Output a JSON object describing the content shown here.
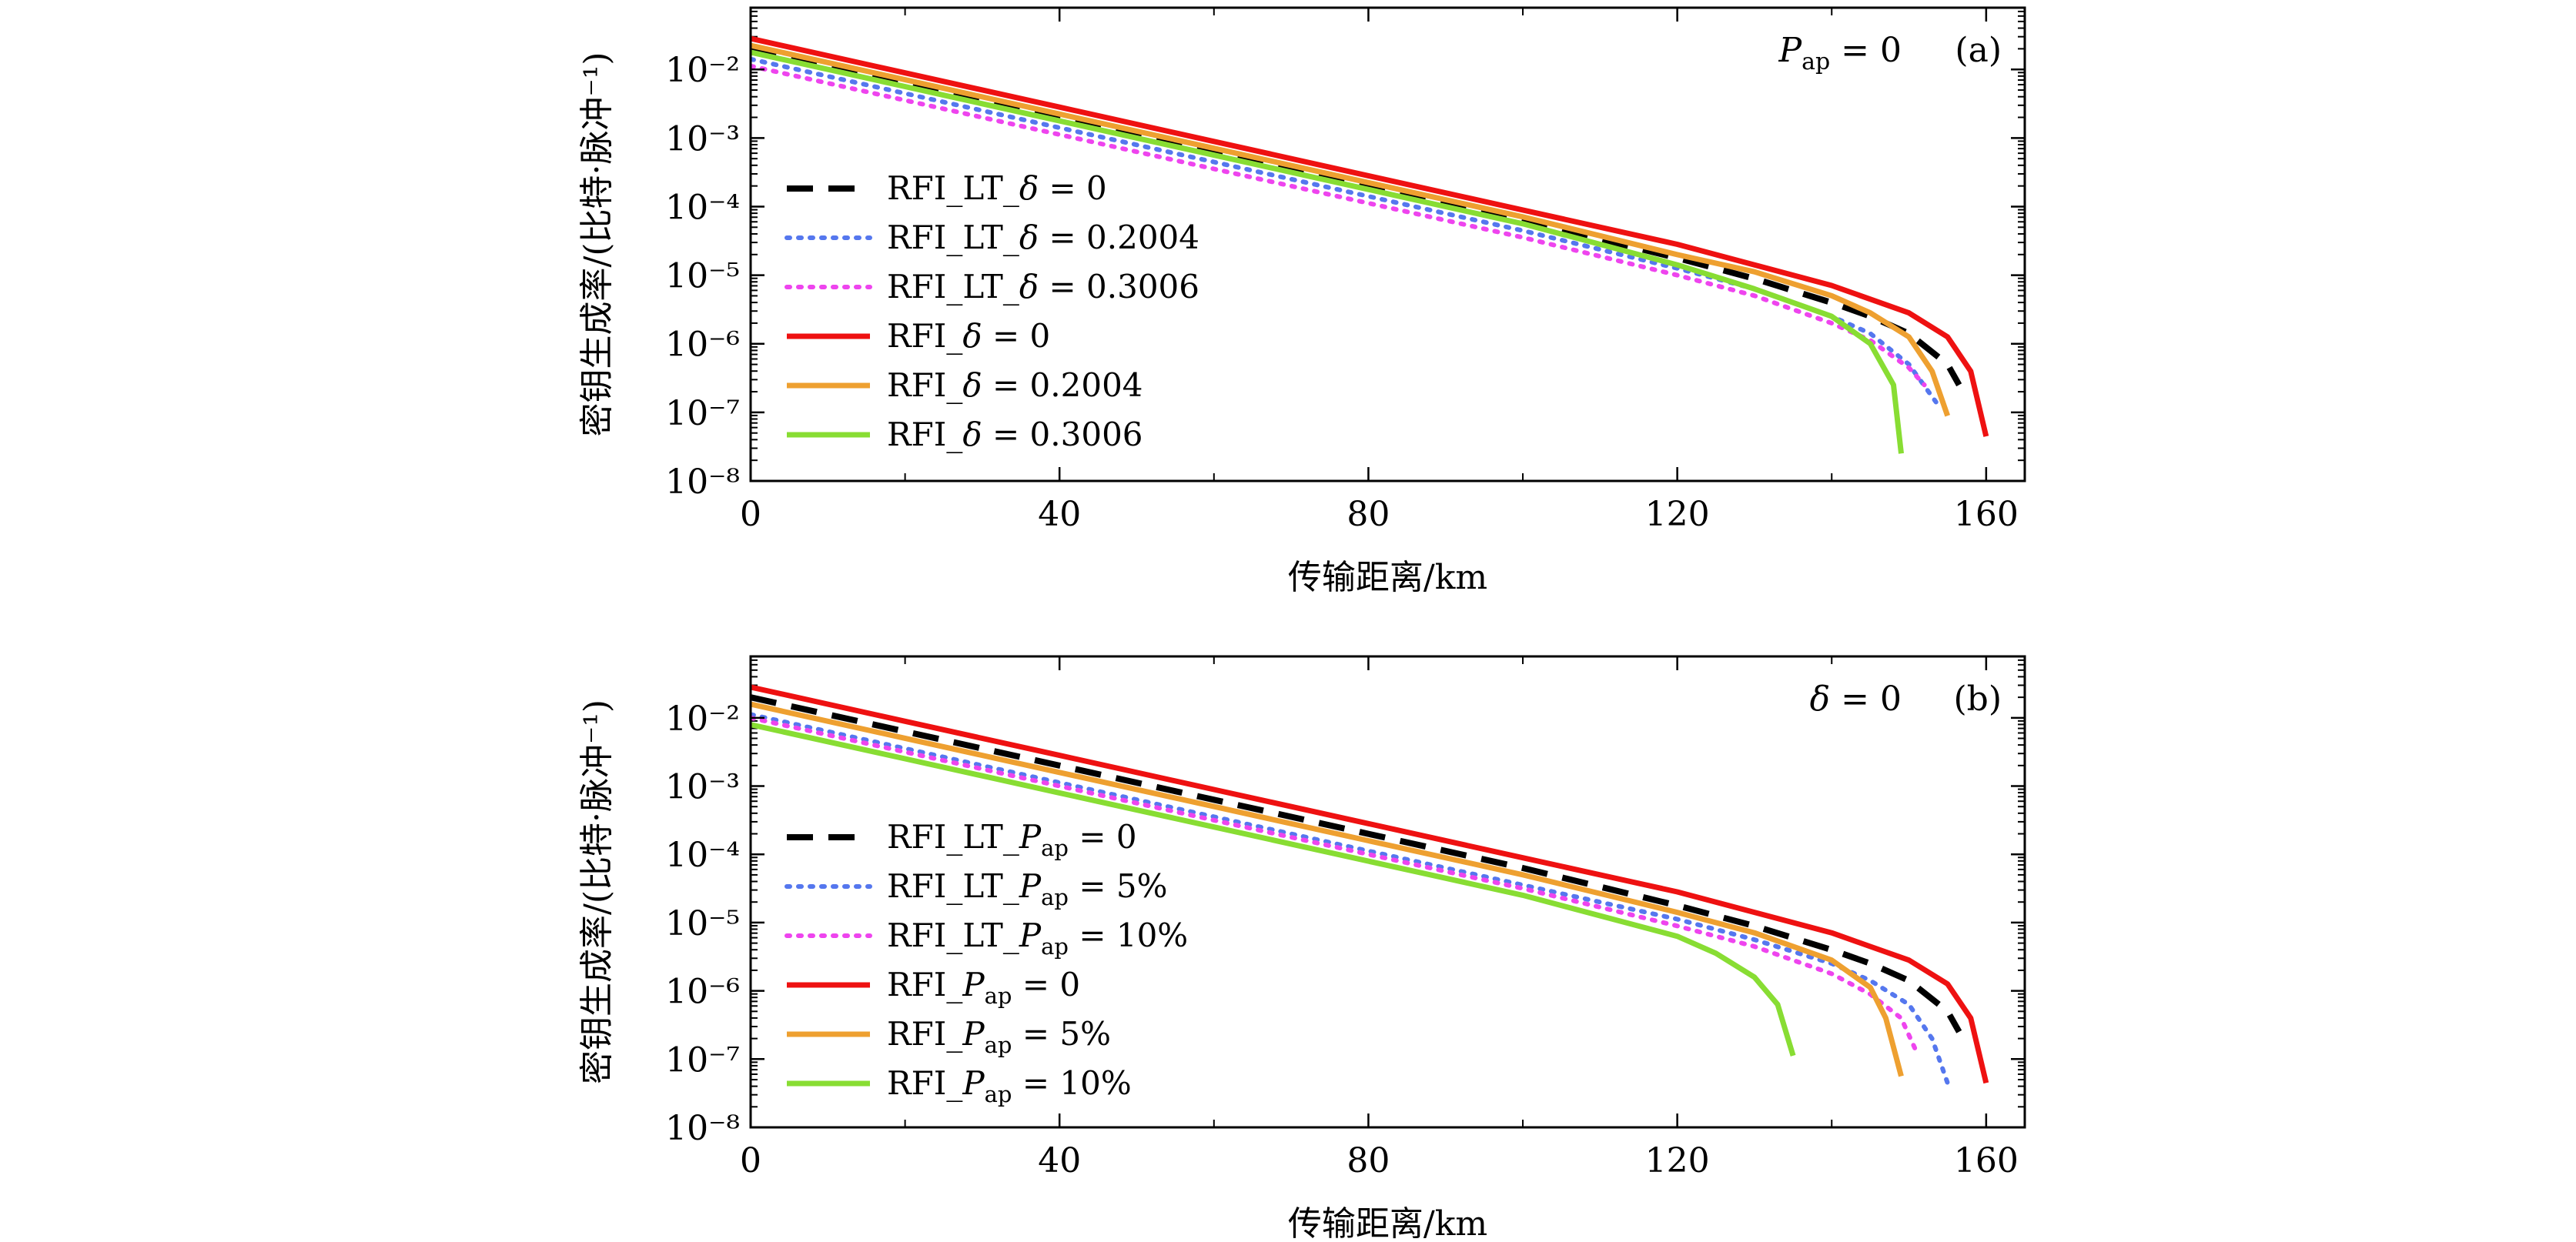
{
  "chart_data": [
    {
      "type": "line",
      "panel_tag": "(a)",
      "condition": {
        "symbol": "P",
        "sub": "ap",
        "rest": " = 0"
      },
      "xlabel": "传输距离/km",
      "ylabel": "密钥生成率/(比特·脉冲⁻¹)",
      "xlim": [
        0,
        165
      ],
      "xticks": [
        0,
        40,
        80,
        120,
        160
      ],
      "ylim_exp": [
        -8,
        -1.1
      ],
      "yticks": [
        {
          "exp": -8,
          "label": "10⁻⁸"
        },
        {
          "exp": -7,
          "label": "10⁻⁷"
        },
        {
          "exp": -6,
          "label": "10⁻⁶"
        },
        {
          "exp": -5,
          "label": "10⁻⁵"
        },
        {
          "exp": -4,
          "label": "10⁻⁴"
        },
        {
          "exp": -3,
          "label": "10⁻³"
        },
        {
          "exp": -2,
          "label": "10⁻²"
        }
      ],
      "series": [
        {
          "name": "RFI_LT_",
          "sym": "δ",
          "sub": "",
          "rest": " = 0",
          "color": "#000000",
          "style": "dashed",
          "x": [
            0,
            20,
            40,
            60,
            80,
            100,
            120,
            130,
            140,
            145,
            150,
            155,
            156.5
          ],
          "log10_y": [
            -1.7,
            -2.2,
            -2.7,
            -3.2,
            -3.7,
            -4.2,
            -4.75,
            -5.05,
            -5.4,
            -5.6,
            -5.85,
            -6.3,
            -6.6
          ]
        },
        {
          "name": "RFI_LT_",
          "sym": "δ",
          "sub": "",
          "rest": " = 0.2004",
          "color": "#5577ee",
          "style": "dotted",
          "x": [
            0,
            20,
            40,
            60,
            80,
            100,
            120,
            130,
            140,
            145,
            150,
            153.5
          ],
          "log10_y": [
            -1.85,
            -2.35,
            -2.85,
            -3.35,
            -3.85,
            -4.35,
            -4.9,
            -5.2,
            -5.6,
            -5.85,
            -6.3,
            -6.85
          ]
        },
        {
          "name": "RFI_LT_",
          "sym": "δ",
          "sub": "",
          "rest": " = 0.3006",
          "color": "#ee44ee",
          "style": "dotted",
          "x": [
            0,
            20,
            40,
            60,
            80,
            100,
            120,
            130,
            140,
            145,
            150,
            152
          ],
          "log10_y": [
            -1.95,
            -2.45,
            -2.95,
            -3.45,
            -3.95,
            -4.45,
            -5.0,
            -5.3,
            -5.7,
            -5.95,
            -6.35,
            -6.6
          ]
        },
        {
          "name": "RFI_",
          "sym": "δ",
          "sub": "",
          "rest": " = 0",
          "color": "#ee1111",
          "style": "solid",
          "x": [
            0,
            20,
            40,
            60,
            80,
            100,
            120,
            130,
            140,
            145,
            150,
            155,
            158,
            160
          ],
          "log10_y": [
            -1.55,
            -2.05,
            -2.55,
            -3.05,
            -3.55,
            -4.05,
            -4.55,
            -4.85,
            -5.15,
            -5.35,
            -5.55,
            -5.9,
            -6.4,
            -7.35
          ]
        },
        {
          "name": "RFI_",
          "sym": "δ",
          "sub": "",
          "rest": " = 0.2004",
          "color": "#eea030",
          "style": "solid",
          "x": [
            0,
            20,
            40,
            60,
            80,
            100,
            120,
            130,
            140,
            145,
            150,
            153,
            155
          ],
          "log10_y": [
            -1.65,
            -2.15,
            -2.65,
            -3.15,
            -3.65,
            -4.15,
            -4.7,
            -4.95,
            -5.3,
            -5.55,
            -5.9,
            -6.4,
            -7.05
          ]
        },
        {
          "name": "RFI_",
          "sym": "δ",
          "sub": "",
          "rest": " = 0.3006",
          "color": "#88dd33",
          "style": "solid",
          "x": [
            0,
            20,
            40,
            60,
            80,
            100,
            120,
            130,
            140,
            145,
            148,
            149
          ],
          "log10_y": [
            -1.75,
            -2.25,
            -2.75,
            -3.25,
            -3.75,
            -4.25,
            -4.85,
            -5.2,
            -5.6,
            -6.0,
            -6.6,
            -7.6
          ]
        }
      ]
    },
    {
      "type": "line",
      "panel_tag": "(b)",
      "condition": {
        "symbol": "δ",
        "sub": "",
        "rest": " = 0"
      },
      "xlabel": "传输距离/km",
      "ylabel": "密钥生成率/(比特·脉冲⁻¹)",
      "xlim": [
        0,
        165
      ],
      "xticks": [
        0,
        40,
        80,
        120,
        160
      ],
      "ylim_exp": [
        -8,
        -1.1
      ],
      "yticks": [
        {
          "exp": -8,
          "label": "10⁻⁸"
        },
        {
          "exp": -7,
          "label": "10⁻⁷"
        },
        {
          "exp": -6,
          "label": "10⁻⁶"
        },
        {
          "exp": -5,
          "label": "10⁻⁵"
        },
        {
          "exp": -4,
          "label": "10⁻⁴"
        },
        {
          "exp": -3,
          "label": "10⁻³"
        },
        {
          "exp": -2,
          "label": "10⁻²"
        }
      ],
      "series": [
        {
          "name": "RFI_LT_",
          "sym": "P",
          "sub": "ap",
          "rest": " = 0",
          "color": "#000000",
          "style": "dashed",
          "x": [
            0,
            20,
            40,
            60,
            80,
            100,
            120,
            130,
            140,
            145,
            150,
            155,
            156.5
          ],
          "log10_y": [
            -1.7,
            -2.2,
            -2.7,
            -3.2,
            -3.7,
            -4.2,
            -4.75,
            -5.05,
            -5.4,
            -5.6,
            -5.85,
            -6.3,
            -6.6
          ]
        },
        {
          "name": "RFI_LT_",
          "sym": "P",
          "sub": "ap",
          "rest": " = 5%",
          "color": "#5577ee",
          "style": "dotted",
          "x": [
            0,
            20,
            40,
            60,
            80,
            100,
            120,
            130,
            140,
            145,
            150,
            153,
            155
          ],
          "log10_y": [
            -1.95,
            -2.45,
            -2.95,
            -3.45,
            -3.95,
            -4.45,
            -4.95,
            -5.25,
            -5.6,
            -5.85,
            -6.2,
            -6.7,
            -7.35
          ]
        },
        {
          "name": "RFI_LT_",
          "sym": "P",
          "sub": "ap",
          "rest": " = 10%",
          "color": "#ee44ee",
          "style": "dotted",
          "x": [
            0,
            20,
            40,
            60,
            80,
            100,
            120,
            130,
            140,
            145,
            149,
            151
          ],
          "log10_y": [
            -2.0,
            -2.5,
            -3.0,
            -3.5,
            -4.0,
            -4.5,
            -5.05,
            -5.35,
            -5.75,
            -6.05,
            -6.4,
            -6.9
          ]
        },
        {
          "name": "RFI_",
          "sym": "P",
          "sub": "ap",
          "rest": " = 0",
          "color": "#ee1111",
          "style": "solid",
          "x": [
            0,
            20,
            40,
            60,
            80,
            100,
            120,
            130,
            140,
            145,
            150,
            155,
            158,
            160
          ],
          "log10_y": [
            -1.55,
            -2.05,
            -2.55,
            -3.05,
            -3.55,
            -4.05,
            -4.55,
            -4.85,
            -5.15,
            -5.35,
            -5.55,
            -5.9,
            -6.4,
            -7.35
          ]
        },
        {
          "name": "RFI_",
          "sym": "P",
          "sub": "ap",
          "rest": " = 5%",
          "color": "#eea030",
          "style": "solid",
          "x": [
            0,
            20,
            40,
            60,
            80,
            100,
            120,
            130,
            140,
            145,
            147,
            149
          ],
          "log10_y": [
            -1.8,
            -2.3,
            -2.8,
            -3.3,
            -3.8,
            -4.3,
            -4.85,
            -5.15,
            -5.55,
            -5.95,
            -6.4,
            -7.25
          ]
        },
        {
          "name": "RFI_",
          "sym": "P",
          "sub": "ap",
          "rest": " = 10%",
          "color": "#88dd33",
          "style": "solid",
          "x": [
            0,
            20,
            40,
            60,
            80,
            100,
            120,
            125,
            130,
            133,
            135
          ],
          "log10_y": [
            -2.1,
            -2.6,
            -3.1,
            -3.6,
            -4.1,
            -4.6,
            -5.2,
            -5.45,
            -5.8,
            -6.2,
            -6.95
          ]
        }
      ]
    }
  ]
}
